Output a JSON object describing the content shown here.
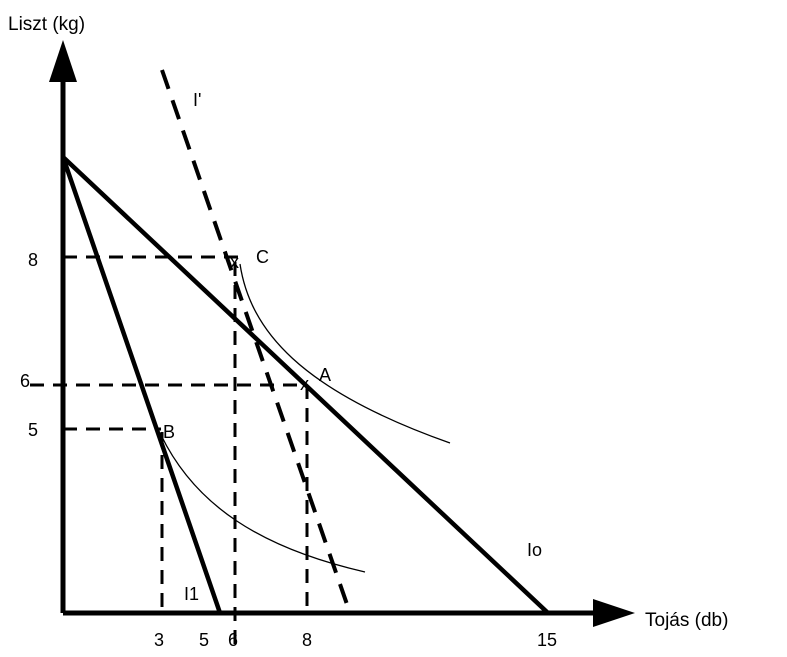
{
  "axes": {
    "y_label": "Liszt (kg)",
    "x_label": "Tojás (db)"
  },
  "x_ticks": [
    "3",
    "5",
    "6",
    "8",
    "15"
  ],
  "y_ticks": [
    "8",
    "6",
    "5"
  ],
  "points": {
    "a": "A",
    "b": "B",
    "c": "C",
    "marker": "x"
  },
  "lines": {
    "budget_0": "Io",
    "budget_1": "I1",
    "budget_prime": "I'"
  },
  "colors": {
    "ink": "#000000",
    "background": "#ffffff"
  }
}
